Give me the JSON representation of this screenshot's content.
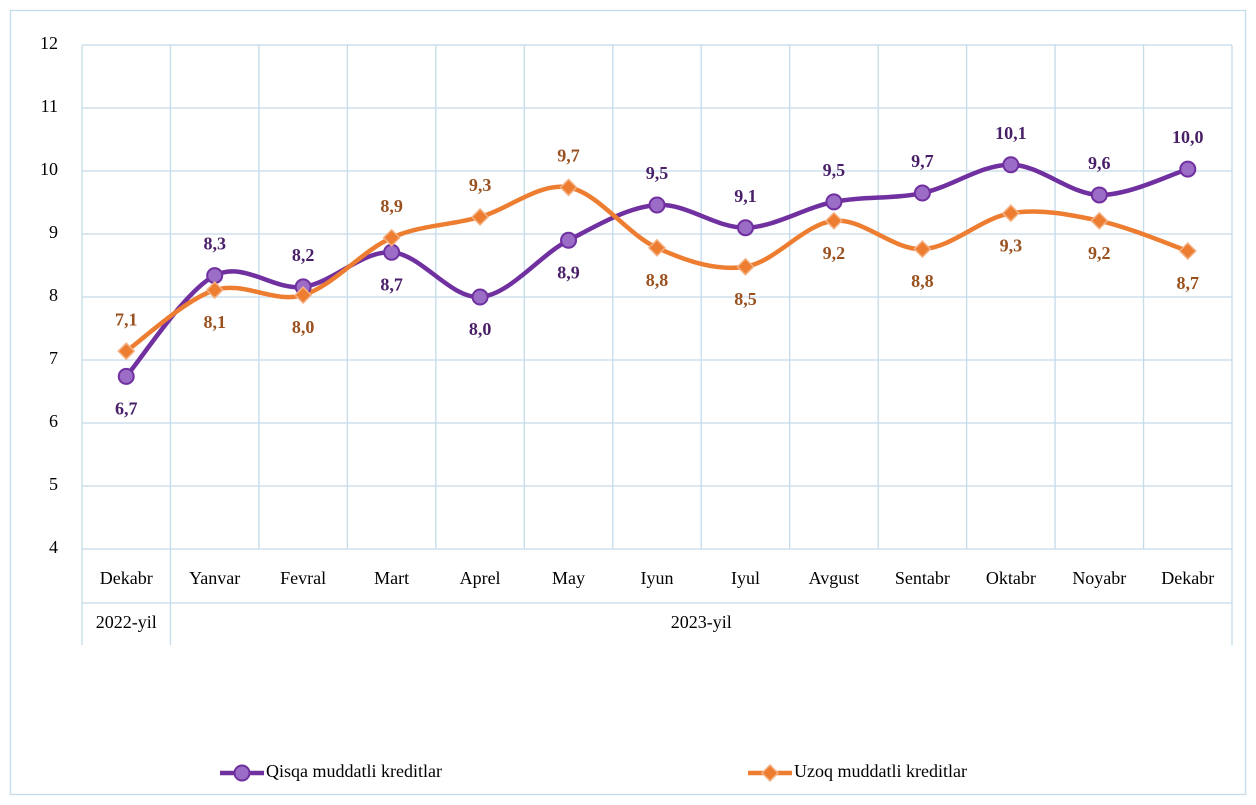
{
  "chart_data": {
    "type": "line",
    "categories": [
      "Dekabr",
      "Yanvar",
      "Fevral",
      "Mart",
      "Aprel",
      "May",
      "Iyun",
      "Iyul",
      "Avgust",
      "Sentabr",
      "Oktabr",
      "Noyabr",
      "Dekabr"
    ],
    "category_groups": [
      {
        "label": "2022-yil",
        "start": 0,
        "end": 0
      },
      {
        "label": "2023-yil",
        "start": 1,
        "end": 12
      }
    ],
    "series": [
      {
        "name": "Qisqa muddatli kreditlar",
        "color": "#7030a0",
        "marker": "circle",
        "values": [
          6.74,
          8.34,
          8.16,
          8.71,
          8.0,
          8.9,
          9.46,
          9.1,
          9.51,
          9.65,
          10.1,
          9.62,
          10.03
        ],
        "value_labels": [
          "6,7",
          "8,3",
          "8,2",
          "8,7",
          "8,0",
          "8,9",
          "9,5",
          "9,1",
          "9,5",
          "9,7",
          "10,1",
          "9,6",
          "10,0"
        ]
      },
      {
        "name": "Uzoq muddatli kreditlar",
        "color": "#ed7d31",
        "marker": "diamond",
        "values": [
          7.14,
          8.11,
          8.03,
          8.94,
          9.27,
          9.74,
          8.78,
          8.48,
          9.21,
          8.76,
          9.33,
          9.21,
          8.73
        ],
        "value_labels": [
          "7,1",
          "8,1",
          "8,0",
          "8,9",
          "9,3",
          "9,7",
          "8,8",
          "8,5",
          "9,2",
          "8,8",
          "9,3",
          "9,2",
          "8,7"
        ]
      }
    ],
    "ylim": [
      4,
      12
    ],
    "yticks": [
      4,
      5,
      6,
      7,
      8,
      9,
      10,
      11,
      12
    ],
    "grid": true,
    "legend": "bottom"
  }
}
